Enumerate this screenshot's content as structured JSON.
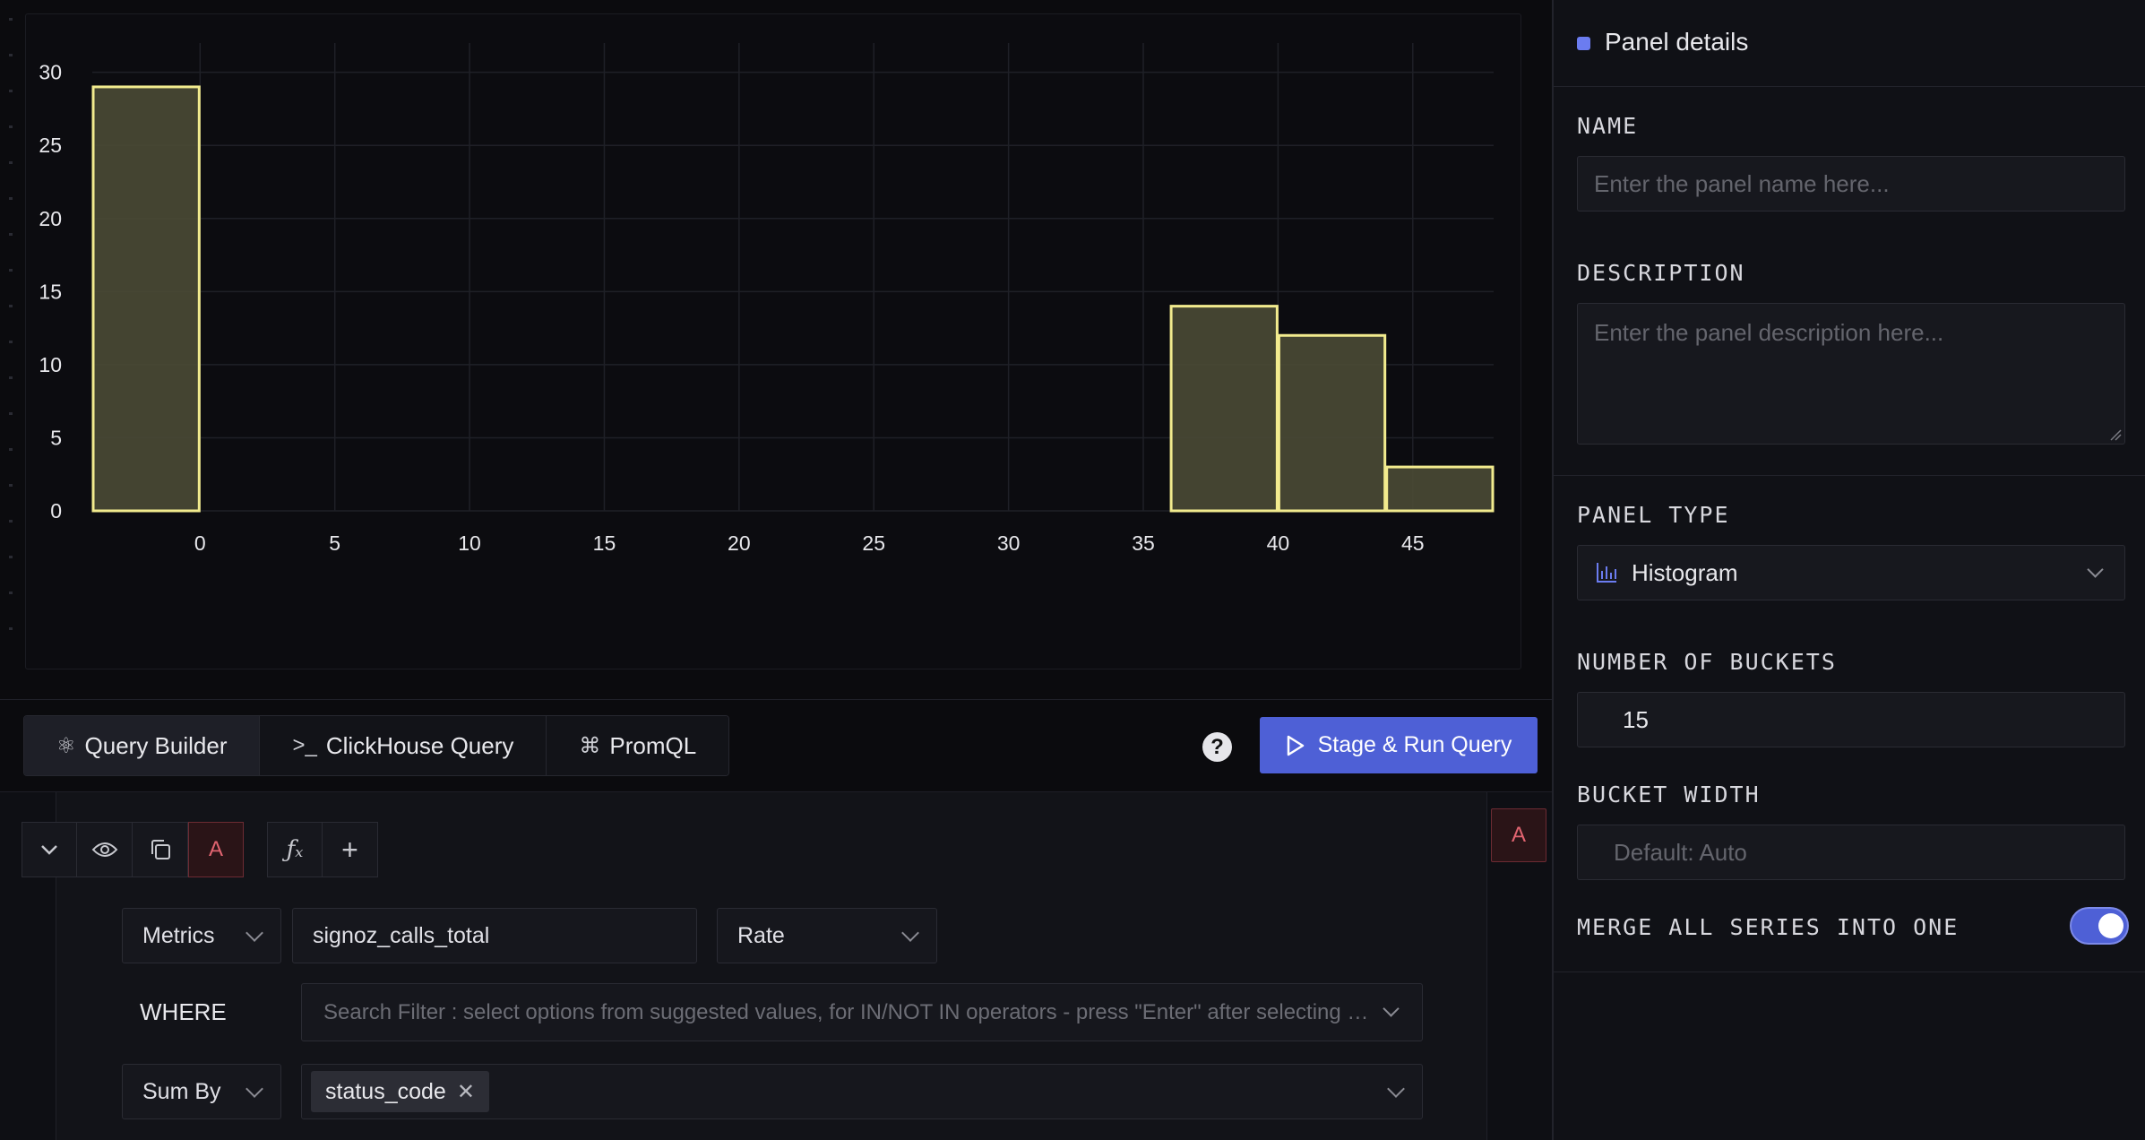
{
  "chart_data": {
    "type": "bar",
    "title": "",
    "xlabel": "",
    "ylabel": "",
    "x_ticks": [
      "0",
      "5",
      "10",
      "15",
      "20",
      "25",
      "30",
      "35",
      "40",
      "45"
    ],
    "y_ticks": [
      "0",
      "5",
      "10",
      "15",
      "20",
      "25",
      "30"
    ],
    "xlim": [
      -4,
      48
    ],
    "ylim": [
      0,
      32
    ],
    "grid": true,
    "bins": [
      {
        "start": -4,
        "end": 0,
        "value": 29
      },
      {
        "start": 36,
        "end": 40,
        "value": 14
      },
      {
        "start": 40,
        "end": 44,
        "value": 12
      },
      {
        "start": 44,
        "end": 48,
        "value": 3
      }
    ],
    "bar_fill": "#4a4a35",
    "bar_stroke": "#f2eb8e"
  },
  "tabs": {
    "query_builder": "Query Builder",
    "clickhouse": "ClickHouse Query",
    "promql": "PromQL"
  },
  "help_label": "?",
  "run_button": "Stage & Run Query",
  "query": {
    "name_tag": "A",
    "side_tag": "A",
    "data_source": "Metrics",
    "metric": "signoz_calls_total",
    "aggregate": "Rate",
    "where_label": "WHERE",
    "filter_placeholder": "Search Filter : select options from suggested values, for IN/NOT IN operators - press \"Enter\" after selecting options",
    "group_op": "Sum By",
    "group_chip": "status_code"
  },
  "panel": {
    "title": "Panel details",
    "name_label": "NAME",
    "name_placeholder": "Enter the panel name here...",
    "desc_label": "DESCRIPTION",
    "desc_placeholder": "Enter the panel description here...",
    "type_label": "PANEL TYPE",
    "type_value": "Histogram",
    "buckets_label": "NUMBER OF BUCKETS",
    "buckets_value": "15",
    "width_label": "BUCKET WIDTH",
    "width_placeholder": "Default: Auto",
    "merge_label": "MERGE ALL SERIES INTO ONE",
    "merge_on": true
  },
  "colors": {
    "accent": "#4e60d6",
    "query_tag": "#e16470"
  }
}
